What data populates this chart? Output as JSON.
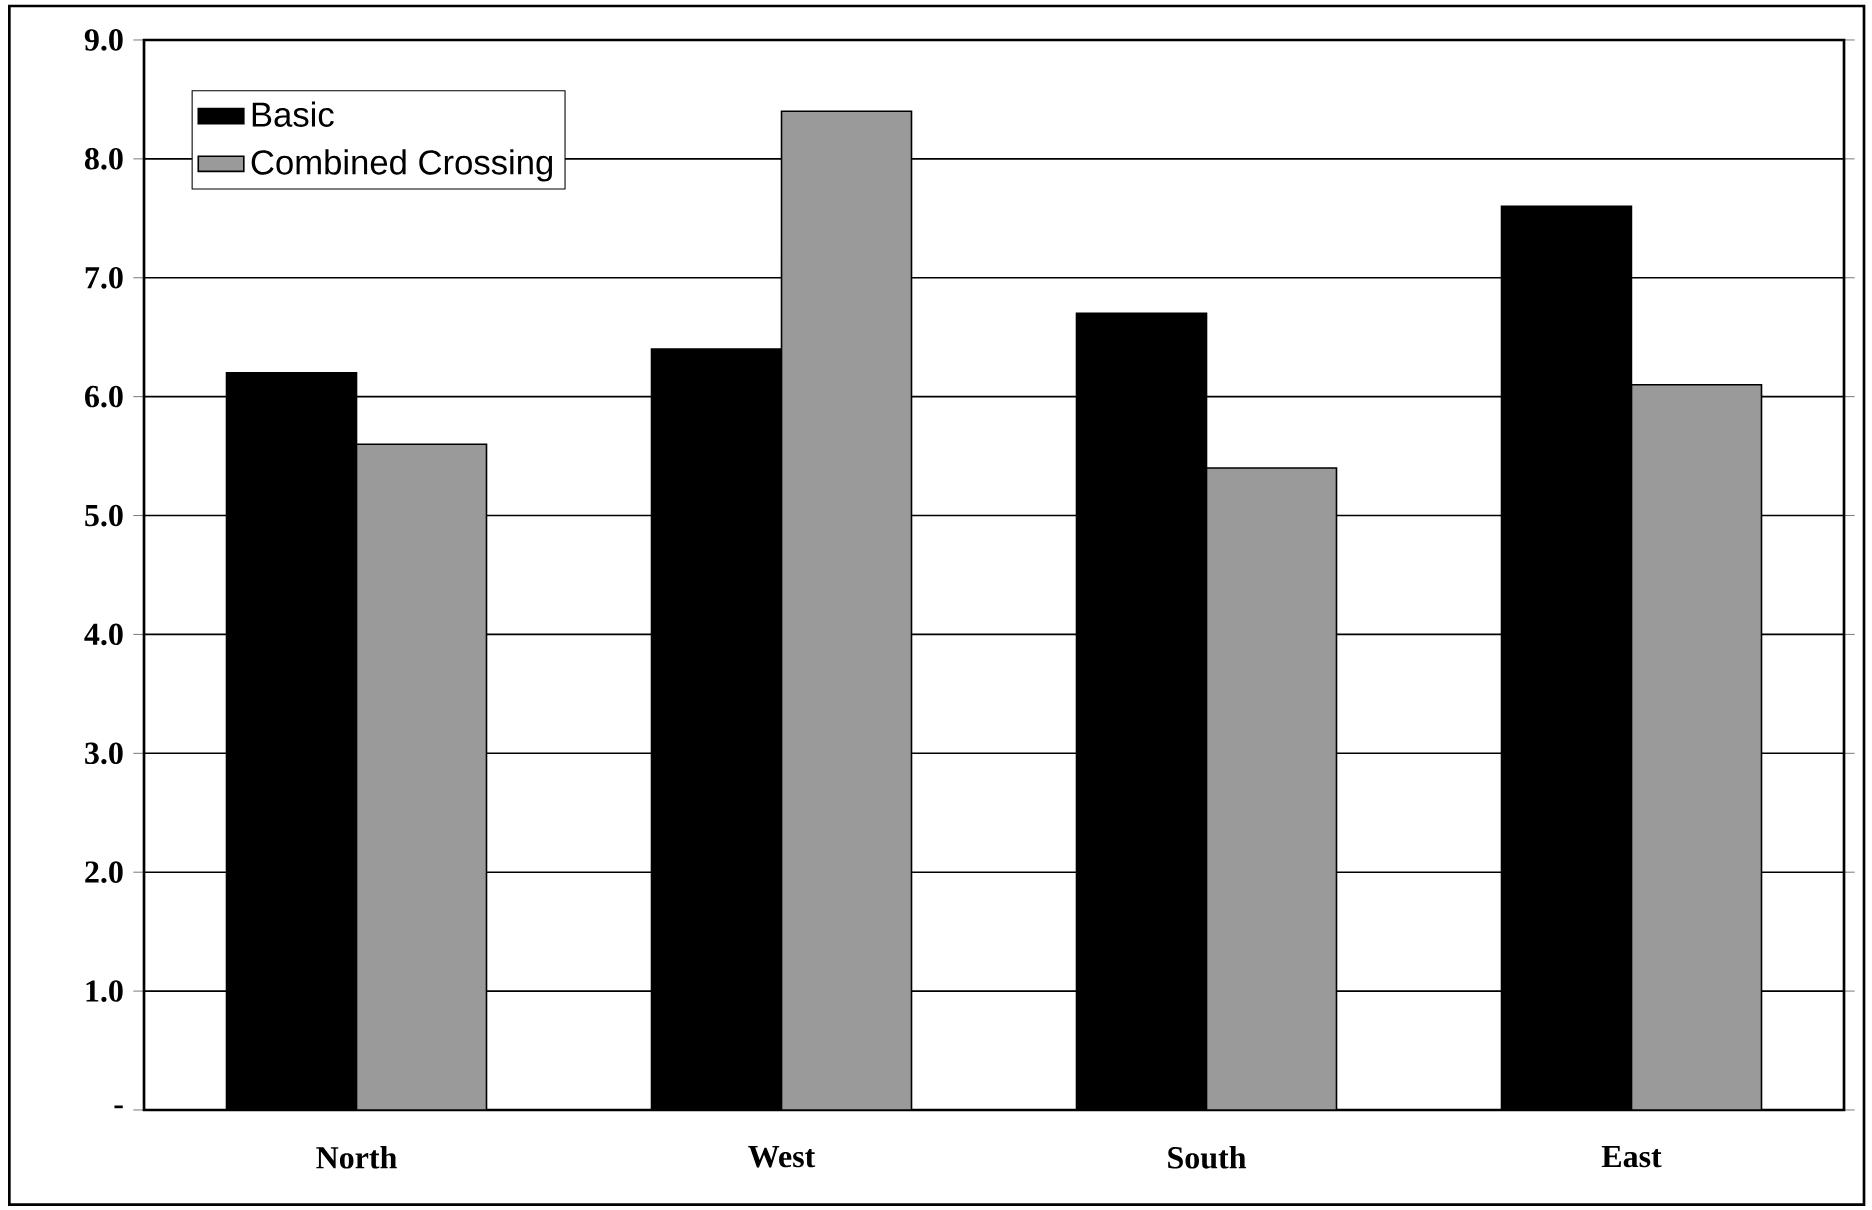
{
  "chart_data": {
    "type": "bar",
    "categories": [
      "North",
      "West",
      "South",
      "East"
    ],
    "series": [
      {
        "name": "Basic",
        "color": "#000000",
        "values": [
          6.2,
          6.4,
          6.7,
          7.6
        ]
      },
      {
        "name": "Combined Crossing",
        "color": "#9a9a9a",
        "values": [
          5.6,
          8.4,
          5.4,
          6.1
        ]
      }
    ],
    "ylim": [
      0,
      9
    ],
    "yticks": [
      {
        "value": 0,
        "label": "-"
      },
      {
        "value": 1,
        "label": "1.0"
      },
      {
        "value": 2,
        "label": "2.0"
      },
      {
        "value": 3,
        "label": "3.0"
      },
      {
        "value": 4,
        "label": "4.0"
      },
      {
        "value": 5,
        "label": "5.0"
      },
      {
        "value": 6,
        "label": "6.0"
      },
      {
        "value": 7,
        "label": "7.0"
      },
      {
        "value": 8,
        "label": "8.0"
      },
      {
        "value": 9,
        "label": "9.0"
      }
    ],
    "grid": "y",
    "legend": "top left"
  }
}
